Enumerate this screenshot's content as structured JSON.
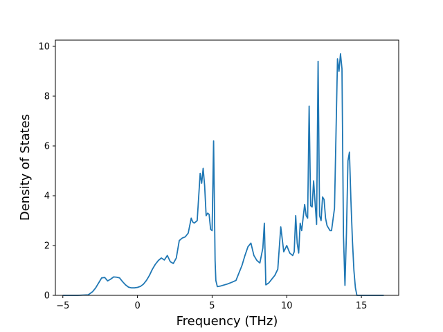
{
  "chart_data": {
    "type": "line",
    "title": "",
    "xlabel": "Frequency (THz)",
    "ylabel": "Density of States",
    "xlim": [
      -5.5,
      17.5
    ],
    "ylim": [
      0,
      10.25
    ],
    "xticks": [
      -5,
      0,
      5,
      10,
      15
    ],
    "xtick_labels": [
      "−5",
      "0",
      "5",
      "10",
      "15"
    ],
    "yticks": [
      0,
      2,
      4,
      6,
      8,
      10
    ],
    "ytick_labels": [
      "0",
      "2",
      "4",
      "6",
      "8",
      "10"
    ],
    "grid": false,
    "legend": "none",
    "series": [
      {
        "color": "#1f77b4",
        "x": [
          -5.0,
          -4.0,
          -3.3,
          -3.0,
          -2.8,
          -2.6,
          -2.4,
          -2.2,
          -2.0,
          -1.8,
          -1.6,
          -1.4,
          -1.2,
          -1.0,
          -0.8,
          -0.6,
          -0.4,
          -0.2,
          0.0,
          0.2,
          0.4,
          0.6,
          0.8,
          1.0,
          1.2,
          1.4,
          1.6,
          1.8,
          2.0,
          2.2,
          2.4,
          2.6,
          2.8,
          3.0,
          3.2,
          3.4,
          3.6,
          3.7,
          3.8,
          4.0,
          4.2,
          4.3,
          4.4,
          4.5,
          4.6,
          4.7,
          4.8,
          4.9,
          5.0,
          5.1,
          5.2,
          5.25,
          5.35,
          5.6,
          6.0,
          6.3,
          6.6,
          6.8,
          7.0,
          7.2,
          7.4,
          7.6,
          7.8,
          8.0,
          8.2,
          8.4,
          8.5,
          8.6,
          8.8,
          9.0,
          9.2,
          9.4,
          9.6,
          9.8,
          10.0,
          10.2,
          10.4,
          10.5,
          10.6,
          10.7,
          10.8,
          10.9,
          11.0,
          11.2,
          11.3,
          11.4,
          11.5,
          11.6,
          11.7,
          11.8,
          11.9,
          12.0,
          12.1,
          12.2,
          12.3,
          12.4,
          12.5,
          12.6,
          12.7,
          12.8,
          12.9,
          13.0,
          13.2,
          13.4,
          13.5,
          13.6,
          13.7,
          13.8,
          13.9,
          14.0,
          14.1,
          14.2,
          14.3,
          14.4,
          14.5,
          14.6,
          14.7,
          14.8,
          15.0,
          16.5
        ],
        "y": [
          0.0,
          0.0,
          0.02,
          0.15,
          0.3,
          0.5,
          0.7,
          0.72,
          0.58,
          0.65,
          0.74,
          0.73,
          0.7,
          0.55,
          0.42,
          0.33,
          0.3,
          0.3,
          0.32,
          0.36,
          0.45,
          0.6,
          0.8,
          1.05,
          1.25,
          1.4,
          1.5,
          1.42,
          1.6,
          1.35,
          1.28,
          1.5,
          2.2,
          2.3,
          2.35,
          2.5,
          3.1,
          2.95,
          2.9,
          3.0,
          4.9,
          4.5,
          5.1,
          4.4,
          3.2,
          3.3,
          3.25,
          2.65,
          2.6,
          6.2,
          1.4,
          0.6,
          0.35,
          0.38,
          0.45,
          0.52,
          0.6,
          0.9,
          1.2,
          1.6,
          1.95,
          2.1,
          1.6,
          1.4,
          1.3,
          1.9,
          2.9,
          0.42,
          0.5,
          0.65,
          0.8,
          1.05,
          2.75,
          1.75,
          2.0,
          1.7,
          1.6,
          1.75,
          3.2,
          2.1,
          1.7,
          2.9,
          2.6,
          3.65,
          3.2,
          3.1,
          7.6,
          3.6,
          3.55,
          4.6,
          3.7,
          2.85,
          9.4,
          3.2,
          3.0,
          3.95,
          3.85,
          3.1,
          2.8,
          2.7,
          2.6,
          2.6,
          3.5,
          9.5,
          9.0,
          9.7,
          9.1,
          2.4,
          0.4,
          2.5,
          5.4,
          5.75,
          3.8,
          2.2,
          1.0,
          0.3,
          0.0,
          0.0,
          0.0,
          0.0
        ]
      }
    ]
  }
}
